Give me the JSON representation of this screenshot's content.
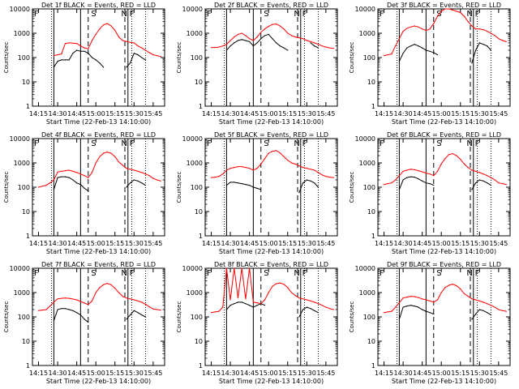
{
  "page": {
    "background": "#ffffff",
    "event_color": "#000000",
    "lld_color": "#ff0000"
  },
  "shared": {
    "x_ticks": [
      "14:15",
      "14:30",
      "14:45",
      "15:00",
      "15:15",
      "15:30",
      "15:45"
    ],
    "x_tick_values": [
      14.25,
      14.5,
      14.75,
      15.0,
      15.25,
      15.5,
      15.75
    ],
    "y_ticks": [
      "1",
      "10",
      "100",
      "1000",
      "10000"
    ],
    "y_tick_values": [
      1,
      10,
      100,
      1000,
      10000
    ],
    "xlabel": "Start Time (22-Feb-13 14:10:00)",
    "ylabel": "Counts/sec",
    "xlim": [
      14.17,
      15.9
    ],
    "ylim": [
      1,
      10000
    ],
    "y_scale": "log",
    "interval_letters": [
      "F",
      "S",
      "N",
      "F"
    ],
    "interval_letter_x": [
      14.22,
      14.97,
      15.37,
      15.47
    ],
    "solid_lines_x": [
      14.45,
      14.8,
      15.42
    ],
    "dashed_lines_x": [
      14.9,
      15.38
    ],
    "dotted_lines_x": [
      14.42,
      15.47,
      15.65
    ],
    "time_x": [
      14.25,
      14.3,
      14.35,
      14.4,
      14.45,
      14.5,
      14.55,
      14.6,
      14.65,
      14.7,
      14.75,
      14.8,
      14.85,
      14.9,
      14.95,
      15.0,
      15.05,
      15.1,
      15.15,
      15.2,
      15.25,
      15.3,
      15.35,
      15.4,
      15.45,
      15.5,
      15.55,
      15.6,
      15.65,
      15.7,
      15.75,
      15.8,
      15.85
    ]
  },
  "chart_data": [
    {
      "type": "line",
      "title": "Det 1f BLACK = Events, RED = LLD",
      "series": [
        {
          "name": "Events",
          "color": "#000000",
          "values": [
            null,
            null,
            null,
            null,
            40,
            70,
            80,
            80,
            80,
            150,
            200,
            180,
            180,
            150,
            100,
            80,
            60,
            40,
            null,
            null,
            null,
            null,
            null,
            40,
            60,
            150,
            130,
            100,
            80,
            null,
            null,
            null,
            null
          ]
        },
        {
          "name": "LLD",
          "color": "#ff0000",
          "values": [
            null,
            null,
            null,
            null,
            120,
            130,
            140,
            380,
            400,
            390,
            380,
            300,
            250,
            230,
            500,
            900,
            1500,
            2200,
            2500,
            2000,
            1300,
            700,
            500,
            460,
            420,
            400,
            300,
            250,
            200,
            160,
            130,
            120,
            110
          ]
        }
      ]
    },
    {
      "type": "line",
      "title": "Det 2f BLACK = Events, RED = LLD",
      "series": [
        {
          "name": "Events",
          "color": "#000000",
          "values": [
            null,
            null,
            null,
            null,
            200,
            300,
            400,
            500,
            550,
            500,
            450,
            300,
            400,
            600,
            800,
            900,
            600,
            400,
            300,
            250,
            200,
            null,
            null,
            null,
            null,
            null,
            400,
            300,
            250,
            null,
            null,
            null,
            null
          ]
        },
        {
          "name": "LLD",
          "color": "#ff0000",
          "values": [
            260,
            260,
            270,
            300,
            350,
            500,
            700,
            900,
            1000,
            800,
            600,
            500,
            700,
            1100,
            1500,
            1900,
            2300,
            2400,
            2000,
            1500,
            1000,
            800,
            700,
            650,
            600,
            500,
            450,
            400,
            350,
            300,
            270,
            250,
            240
          ]
        }
      ]
    },
    {
      "type": "line",
      "title": "Det 3f BLACK = Events, RED = LLD",
      "series": [
        {
          "name": "Events",
          "color": "#000000",
          "values": [
            null,
            null,
            null,
            null,
            70,
            150,
            250,
            300,
            350,
            300,
            250,
            200,
            180,
            160,
            130,
            null,
            null,
            null,
            null,
            null,
            null,
            null,
            null,
            60,
            200,
            400,
            350,
            300,
            200,
            null,
            null,
            null,
            null
          ]
        },
        {
          "name": "LLD",
          "color": "#ff0000",
          "values": [
            120,
            130,
            140,
            300,
            600,
            1200,
            1600,
            1800,
            2000,
            1800,
            1500,
            1300,
            1500,
            2500,
            5000,
            8000,
            10000,
            10000,
            9000,
            8000,
            7000,
            5000,
            3000,
            2000,
            1500,
            1500,
            1400,
            1200,
            1000,
            800,
            600,
            500,
            450
          ]
        }
      ]
    },
    {
      "type": "line",
      "title": "Det 4f BLACK = Events, RED = LLD",
      "series": [
        {
          "name": "Events",
          "color": "#000000",
          "values": [
            null,
            null,
            null,
            null,
            80,
            250,
            270,
            270,
            250,
            200,
            150,
            130,
            90,
            70,
            null,
            null,
            null,
            null,
            null,
            null,
            null,
            null,
            null,
            100,
            150,
            200,
            180,
            150,
            120,
            null,
            null,
            null,
            null
          ]
        },
        {
          "name": "LLD",
          "color": "#ff0000",
          "values": [
            100,
            110,
            120,
            150,
            200,
            420,
            450,
            480,
            500,
            450,
            400,
            350,
            300,
            250,
            400,
            1000,
            1800,
            2500,
            2800,
            2500,
            1800,
            1100,
            800,
            600,
            550,
            500,
            450,
            400,
            350,
            300,
            230,
            200,
            180
          ]
        }
      ]
    },
    {
      "type": "line",
      "title": "Det 5f BLACK = Events, RED = LLD",
      "series": [
        {
          "name": "Events",
          "color": "#000000",
          "values": [
            null,
            null,
            null,
            null,
            120,
            160,
            160,
            150,
            140,
            130,
            120,
            100,
            90,
            80,
            null,
            null,
            null,
            null,
            null,
            null,
            null,
            null,
            null,
            60,
            150,
            200,
            180,
            150,
            100,
            null,
            null,
            null,
            null
          ]
        },
        {
          "name": "LLD",
          "color": "#ff0000",
          "values": [
            250,
            260,
            280,
            350,
            500,
            600,
            650,
            700,
            700,
            650,
            600,
            500,
            600,
            900,
            1500,
            2500,
            3000,
            3200,
            2600,
            1800,
            1300,
            1000,
            900,
            750,
            650,
            600,
            550,
            500,
            400,
            320,
            280,
            260,
            250
          ]
        }
      ]
    },
    {
      "type": "line",
      "title": "Det 6f BLACK = Events, RED = LLD",
      "series": [
        {
          "name": "Events",
          "color": "#000000",
          "values": [
            null,
            null,
            null,
            null,
            80,
            200,
            250,
            270,
            260,
            220,
            180,
            150,
            140,
            120,
            null,
            null,
            null,
            null,
            null,
            null,
            null,
            null,
            null,
            80,
            150,
            200,
            180,
            150,
            120,
            null,
            null,
            null,
            null
          ]
        },
        {
          "name": "LLD",
          "color": "#ff0000",
          "values": [
            130,
            140,
            150,
            200,
            300,
            450,
            500,
            550,
            520,
            480,
            430,
            380,
            350,
            300,
            450,
            900,
            1500,
            2200,
            2400,
            2000,
            1400,
            900,
            650,
            500,
            450,
            400,
            350,
            300,
            250,
            200,
            150,
            140,
            130
          ]
        }
      ]
    },
    {
      "type": "line",
      "title": "Det 7f BLACK = Events, RED = LLD",
      "series": [
        {
          "name": "Events",
          "color": "#000000",
          "values": [
            null,
            null,
            null,
            null,
            70,
            200,
            220,
            220,
            200,
            180,
            150,
            120,
            80,
            60,
            null,
            null,
            null,
            null,
            null,
            null,
            null,
            null,
            null,
            80,
            120,
            180,
            150,
            120,
            100,
            null,
            null,
            null,
            null
          ]
        },
        {
          "name": "LLD",
          "color": "#ff0000",
          "values": [
            180,
            190,
            200,
            280,
            400,
            550,
            580,
            600,
            580,
            540,
            500,
            430,
            370,
            320,
            450,
            1000,
            1600,
            2100,
            2400,
            2100,
            1500,
            1000,
            700,
            600,
            550,
            500,
            450,
            400,
            330,
            260,
            210,
            200,
            190
          ]
        }
      ]
    },
    {
      "type": "line",
      "title": "Det 8f BLACK = Events, RED = LLD",
      "series": [
        {
          "name": "Events",
          "color": "#000000",
          "values": [
            null,
            null,
            null,
            null,
            200,
            300,
            350,
            400,
            400,
            350,
            300,
            250,
            300,
            350,
            300,
            null,
            null,
            null,
            null,
            null,
            null,
            null,
            null,
            100,
            200,
            250,
            220,
            180,
            150,
            null,
            null,
            null,
            null
          ]
        },
        {
          "name": "LLD",
          "color": "#ff0000",
          "values": [
            150,
            160,
            170,
            250,
            10000,
            500,
            10000,
            600,
            10000,
            550,
            10000,
            400,
            380,
            350,
            500,
            1000,
            1800,
            2300,
            2500,
            2200,
            1600,
            1000,
            750,
            600,
            550,
            500,
            450,
            400,
            350,
            300,
            250,
            220,
            200
          ]
        }
      ]
    },
    {
      "type": "line",
      "title": "Det 9f BLACK = Events, RED = LLD",
      "series": [
        {
          "name": "Events",
          "color": "#000000",
          "values": [
            null,
            null,
            null,
            null,
            80,
            250,
            280,
            300,
            280,
            250,
            200,
            170,
            150,
            130,
            null,
            null,
            null,
            null,
            null,
            null,
            null,
            null,
            null,
            80,
            130,
            200,
            180,
            150,
            120,
            null,
            null,
            null,
            null
          ]
        },
        {
          "name": "LLD",
          "color": "#ff0000",
          "values": [
            150,
            160,
            170,
            250,
            380,
            600,
            650,
            700,
            680,
            620,
            550,
            500,
            450,
            400,
            500,
            1000,
            1600,
            2000,
            2200,
            1900,
            1400,
            900,
            700,
            550,
            500,
            450,
            400,
            350,
            300,
            250,
            200,
            180,
            170
          ]
        }
      ]
    }
  ]
}
